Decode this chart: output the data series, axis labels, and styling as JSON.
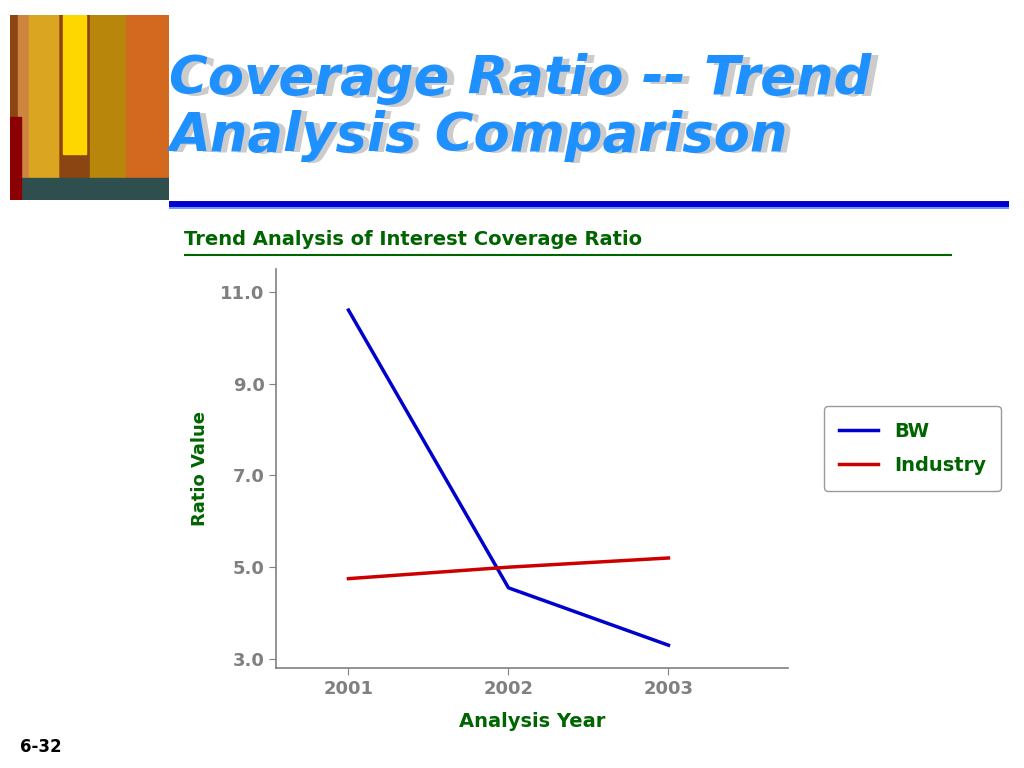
{
  "title_line1": "Coverage Ratio -- Trend",
  "title_line2": "Analysis Comparison",
  "chart_title": "Trend Analysis of Interest Coverage Ratio",
  "xlabel": "Analysis Year",
  "ylabel": "Ratio Value",
  "years": [
    2001,
    2002,
    2003
  ],
  "bw_values": [
    10.6,
    4.55,
    3.3
  ],
  "industry_values": [
    4.75,
    5.0,
    5.2
  ],
  "bw_color": "#0000CC",
  "industry_color": "#CC0000",
  "yticks": [
    3.0,
    5.0,
    7.0,
    9.0,
    11.0
  ],
  "ylim": [
    2.8,
    11.5
  ],
  "xlim": [
    2000.55,
    2003.75
  ],
  "bg_color": "#FFFFFF",
  "title_color": "#1E90FF",
  "chart_title_color": "#006400",
  "axis_label_color": "#006400",
  "tick_label_color": "#006400",
  "legend_labels": [
    "BW",
    "Industry"
  ],
  "slide_number": "6-32",
  "header_line_color": "#0000CC",
  "line_width": 2.5,
  "axis_color": "#808080"
}
